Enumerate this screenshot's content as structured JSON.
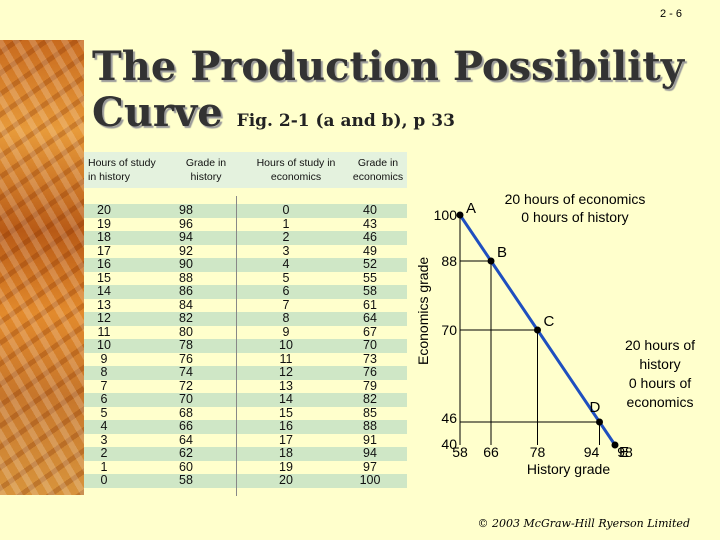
{
  "slide_number": "2 - 6",
  "title_main_line1": "The Production Possibility",
  "title_main_line2": "Curve",
  "title_ref": "Fig. 2-1 (a and b), p 33",
  "table": {
    "headers": [
      "Hours of study in history",
      "Grade in history",
      "Hours of study in economics",
      "Grade in economics"
    ],
    "hours_history": [
      "20",
      "19",
      "18",
      "17",
      "16",
      "15",
      "14",
      "13",
      "12",
      "11",
      "10",
      "9",
      "8",
      "7",
      "6",
      "5",
      "4",
      "3",
      "2",
      "1",
      "0"
    ],
    "grade_history": [
      "98",
      "96",
      "94",
      "92",
      "90",
      "88",
      "86",
      "84",
      "82",
      "80",
      "78",
      "76",
      "74",
      "72",
      "70",
      "68",
      "66",
      "64",
      "62",
      "60",
      "58"
    ],
    "hours_econ": [
      "0",
      "1",
      "2",
      "3",
      "4",
      "5",
      "6",
      "7",
      "8",
      "9",
      "10",
      "11",
      "12",
      "13",
      "14",
      "15",
      "16",
      "17",
      "18",
      "19",
      "20"
    ],
    "grade_econ": [
      "40",
      "43",
      "46",
      "49",
      "52",
      "55",
      "58",
      "61",
      "64",
      "67",
      "70",
      "73",
      "76",
      "79",
      "82",
      "85",
      "88",
      "91",
      "94",
      "97",
      "100"
    ]
  },
  "chart_data": {
    "type": "line",
    "xlabel": "History grade",
    "ylabel": "Economics grade",
    "x_ticks": [
      "58",
      "66",
      "78",
      "94",
      "98"
    ],
    "y_ticks": [
      "100",
      "88",
      "70",
      "46",
      "40"
    ],
    "points": [
      {
        "label": "A",
        "x": 58,
        "y": 100
      },
      {
        "label": "B",
        "x": 66,
        "y": 88
      },
      {
        "label": "C",
        "x": 78,
        "y": 70
      },
      {
        "label": "D",
        "x": 94,
        "y": 46
      },
      {
        "label": "E",
        "x": 98,
        "y": 40
      }
    ],
    "annotation_top": [
      "20 hours of economics",
      "0 hours of history"
    ],
    "annotation_right": [
      "20 hours of",
      "history",
      "0 hours of",
      "economics"
    ],
    "line_color": "#1F4FBF"
  },
  "footer": "© 2003 McGraw-Hill Ryerson Limited"
}
